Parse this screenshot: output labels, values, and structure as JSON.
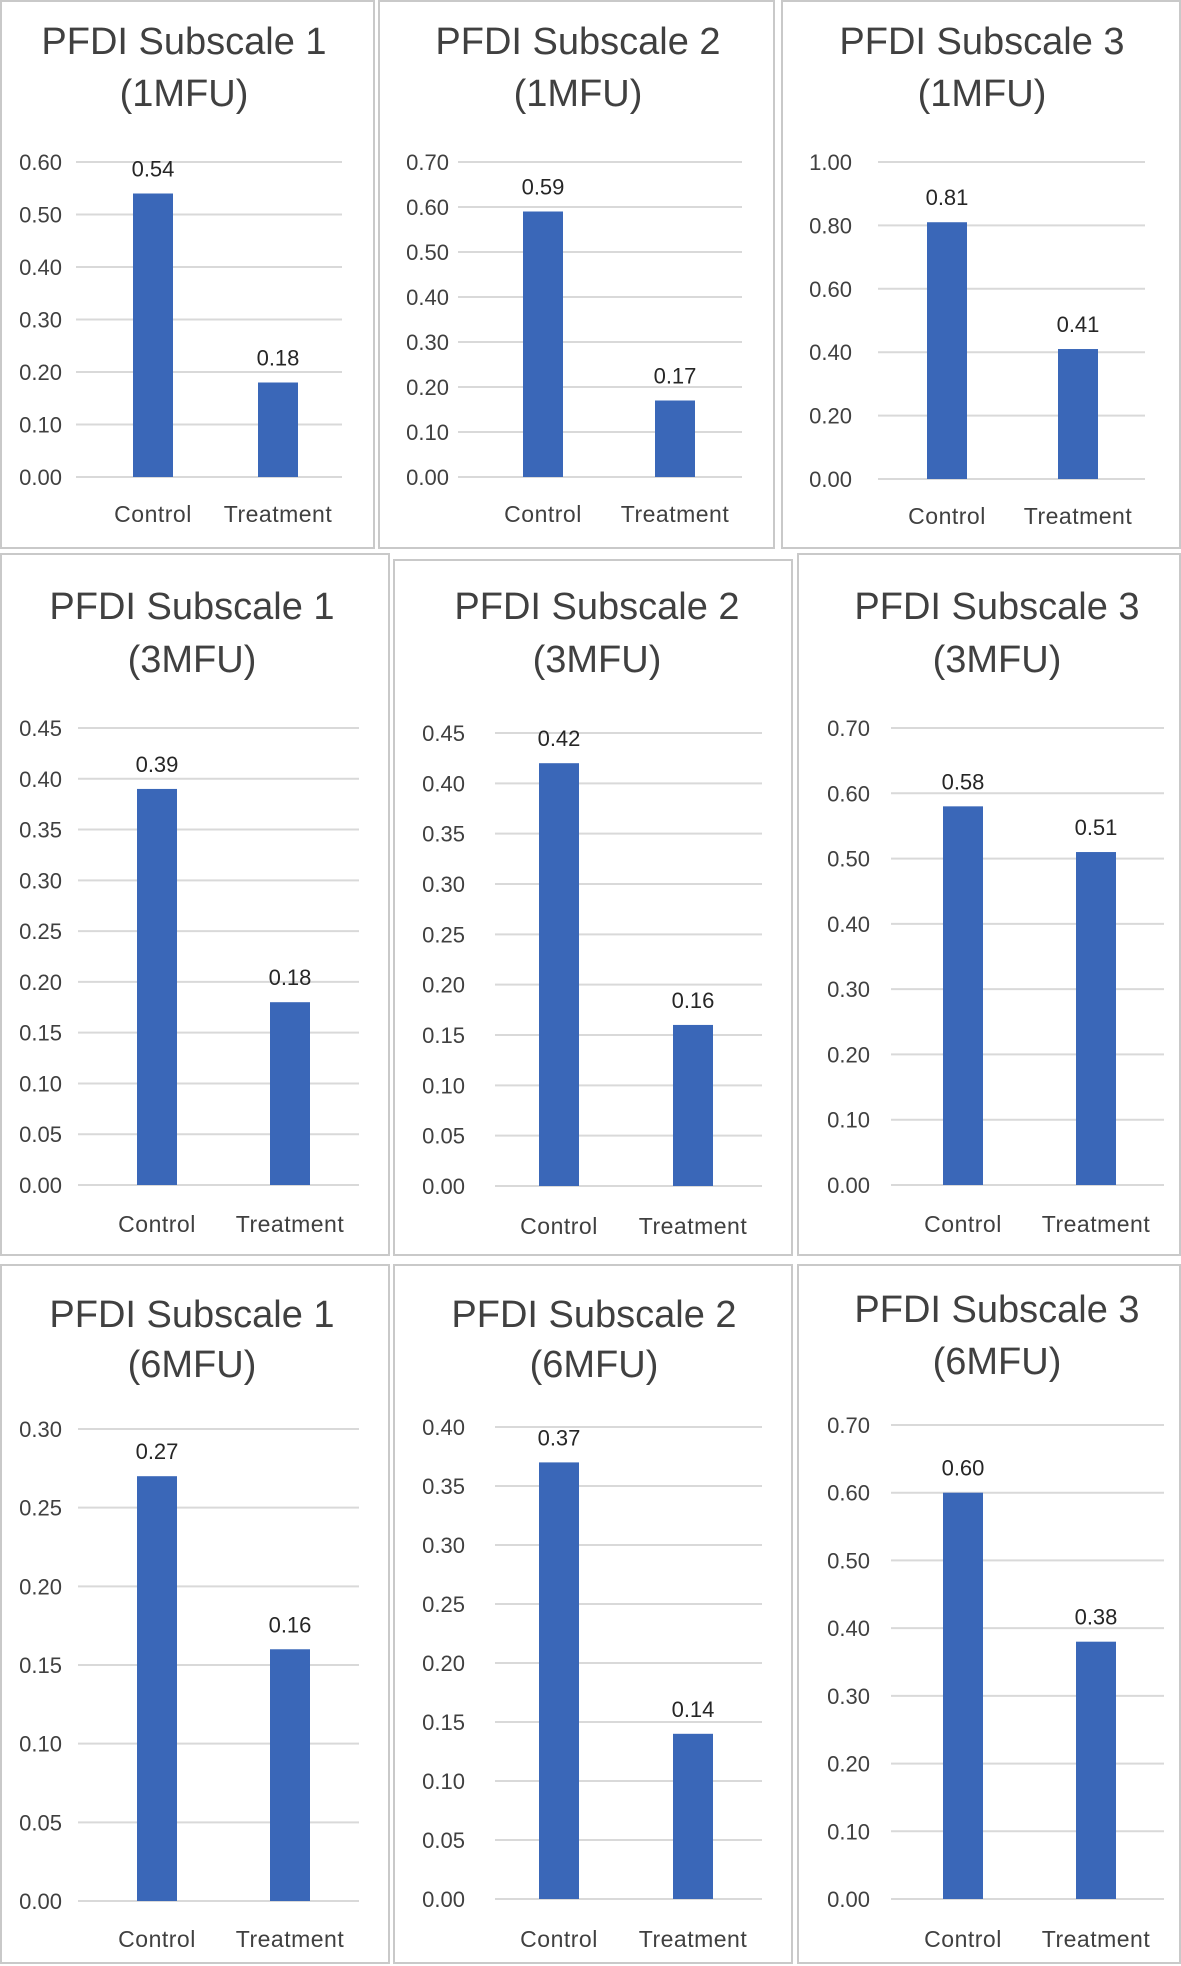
{
  "chart_data": [
    {
      "type": "bar",
      "title": [
        "PFDI Subscale 1",
        "(1MFU)"
      ],
      "categories": [
        "Control",
        "Treatment"
      ],
      "values": [
        0.54,
        0.18
      ],
      "data_labels": [
        "0.54",
        "0.18"
      ],
      "ylim": [
        0,
        0.6
      ],
      "yticks": [
        "0.00",
        "0.10",
        "0.20",
        "0.30",
        "0.40",
        "0.50",
        "0.60"
      ],
      "grid": true,
      "legend": "none"
    },
    {
      "type": "bar",
      "title": [
        "PFDI Subscale 2",
        "(1MFU)"
      ],
      "categories": [
        "Control",
        "Treatment"
      ],
      "values": [
        0.59,
        0.17
      ],
      "data_labels": [
        "0.59",
        "0.17"
      ],
      "ylim": [
        0,
        0.7
      ],
      "yticks": [
        "0.00",
        "0.10",
        "0.20",
        "0.30",
        "0.40",
        "0.50",
        "0.60",
        "0.70"
      ],
      "grid": true,
      "legend": "none"
    },
    {
      "type": "bar",
      "title": [
        "PFDI Subscale 3",
        "(1MFU)"
      ],
      "categories": [
        "Control",
        "Treatment"
      ],
      "values": [
        0.81,
        0.41
      ],
      "data_labels": [
        "0.81",
        "0.41"
      ],
      "ylim": [
        0,
        1.0
      ],
      "yticks": [
        "0.00",
        "0.20",
        "0.40",
        "0.60",
        "0.80",
        "1.00"
      ],
      "grid": true,
      "legend": "none"
    },
    {
      "type": "bar",
      "title": [
        "PFDI Subscale 1",
        "(3MFU)"
      ],
      "categories": [
        "Control",
        "Treatment"
      ],
      "values": [
        0.39,
        0.18
      ],
      "data_labels": [
        "0.39",
        "0.18"
      ],
      "ylim": [
        0,
        0.45
      ],
      "yticks": [
        "0.00",
        "0.05",
        "0.10",
        "0.15",
        "0.20",
        "0.25",
        "0.30",
        "0.35",
        "0.40",
        "0.45"
      ],
      "grid": true,
      "legend": "none"
    },
    {
      "type": "bar",
      "title": [
        "PFDI Subscale 2",
        "(3MFU)"
      ],
      "categories": [
        "Control",
        "Treatment"
      ],
      "values": [
        0.42,
        0.16
      ],
      "data_labels": [
        "0.42",
        "0.16"
      ],
      "ylim": [
        0,
        0.45
      ],
      "yticks": [
        "0.00",
        "0.05",
        "0.10",
        "0.15",
        "0.20",
        "0.25",
        "0.30",
        "0.35",
        "0.40",
        "0.45"
      ],
      "grid": true,
      "legend": "none"
    },
    {
      "type": "bar",
      "title": [
        "PFDI Subscale 3",
        "(3MFU)"
      ],
      "categories": [
        "Control",
        "Treatment"
      ],
      "values": [
        0.58,
        0.51
      ],
      "data_labels": [
        "0.58",
        "0.51"
      ],
      "ylim": [
        0,
        0.7
      ],
      "yticks": [
        "0.00",
        "0.10",
        "0.20",
        "0.30",
        "0.40",
        "0.50",
        "0.60",
        "0.70"
      ],
      "grid": true,
      "legend": "none"
    },
    {
      "type": "bar",
      "title": [
        "PFDI Subscale 1",
        "(6MFU)"
      ],
      "categories": [
        "Control",
        "Treatment"
      ],
      "values": [
        0.27,
        0.16
      ],
      "data_labels": [
        "0.27",
        "0.16"
      ],
      "ylim": [
        0,
        0.3
      ],
      "yticks": [
        "0.00",
        "0.05",
        "0.10",
        "0.15",
        "0.20",
        "0.25",
        "0.30"
      ],
      "grid": true,
      "legend": "none"
    },
    {
      "type": "bar",
      "title": [
        "PFDI Subscale 2",
        "(6MFU)"
      ],
      "categories": [
        "Control",
        "Treatment"
      ],
      "values": [
        0.37,
        0.14
      ],
      "data_labels": [
        "0.37",
        "0.14"
      ],
      "ylim": [
        0,
        0.4
      ],
      "yticks": [
        "0.00",
        "0.05",
        "0.10",
        "0.15",
        "0.20",
        "0.25",
        "0.30",
        "0.35",
        "0.40"
      ],
      "grid": true,
      "legend": "none"
    },
    {
      "type": "bar",
      "title": [
        "PFDI Subscale 3",
        "(6MFU)"
      ],
      "categories": [
        "Control",
        "Treatment"
      ],
      "values": [
        0.6,
        0.38
      ],
      "data_labels": [
        "0.60",
        "0.38"
      ],
      "ylim": [
        0,
        0.7
      ],
      "yticks": [
        "0.00",
        "0.10",
        "0.20",
        "0.30",
        "0.40",
        "0.50",
        "0.60",
        "0.70"
      ],
      "grid": true,
      "legend": "none"
    }
  ],
  "colors": {
    "bar": "#3a67b8",
    "gridline": "#d9d9d9",
    "text": "#404040",
    "panel_border": "#c9c9c9"
  }
}
